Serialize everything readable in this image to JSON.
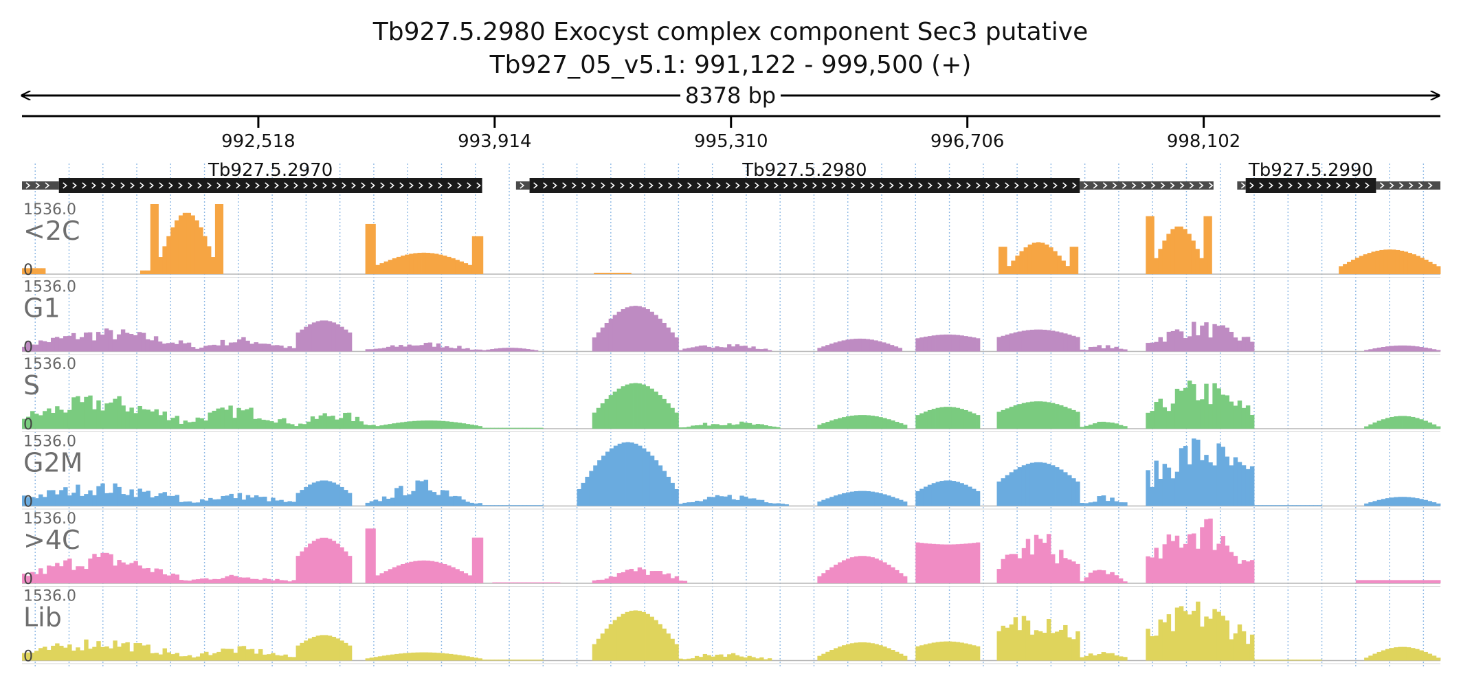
{
  "header": {
    "title": "Tb927.5.2980  Exocyst complex component Sec3  putative",
    "location": "Tb927_05_v5.1: 991,122 - 999,500 (+)",
    "span_label": "8378 bp"
  },
  "chart_data": {
    "type": "area",
    "region": {
      "start": 991122,
      "end": 999500
    },
    "ruler_ticks": [
      {
        "pos": 992518,
        "label": "992,518"
      },
      {
        "pos": 993914,
        "label": "993,914"
      },
      {
        "pos": 995310,
        "label": "995,310"
      },
      {
        "pos": 996706,
        "label": "996,706"
      },
      {
        "pos": 998102,
        "label": "998,102"
      }
    ],
    "genes": [
      {
        "name": "Tb927.5.2970",
        "utr5": [
          991122,
          991340
        ],
        "cds": [
          991340,
          993840
        ]
      },
      {
        "name": "Tb927.5.2980",
        "utr5": [
          994040,
          994120
        ],
        "cds": [
          994120,
          997370
        ],
        "utr3": [
          997370,
          998160
        ]
      },
      {
        "name": "Tb927.5.2990",
        "utr5": [
          998300,
          998350
        ],
        "cds": [
          998350,
          999120
        ],
        "utr3": [
          999120,
          999500
        ]
      }
    ],
    "ylim": [
      0,
      1536
    ],
    "track_max_label": "1536.0",
    "track_min_label": "0",
    "tracks": [
      {
        "name": "<2C",
        "color": "#F6A543",
        "blocks": [
          {
            "from": 991122,
            "to": 991260,
            "base": 130,
            "peak": 130,
            "shape": "flat"
          },
          {
            "from": 991820,
            "to": 991880,
            "base": 80,
            "peak": 80,
            "shape": "flat"
          },
          {
            "from": 991880,
            "to": 992310,
            "base": 1536,
            "peak": 1350,
            "shape": "horns"
          },
          {
            "from": 993150,
            "to": 993210,
            "base": 1100,
            "peak": 1100,
            "shape": "flat"
          },
          {
            "from": 993210,
            "to": 993780,
            "base": 180,
            "peak": 470,
            "shape": "dome"
          },
          {
            "from": 993780,
            "to": 993845,
            "base": 830,
            "peak": 830,
            "shape": "flat"
          },
          {
            "from": 994500,
            "to": 994720,
            "base": 30,
            "peak": 30,
            "shape": "flat"
          },
          {
            "from": 996890,
            "to": 997360,
            "base": 600,
            "peak": 700,
            "shape": "horns"
          },
          {
            "from": 997760,
            "to": 998150,
            "base": 1270,
            "peak": 1050,
            "shape": "horns"
          },
          {
            "from": 998900,
            "to": 999500,
            "base": 150,
            "peak": 540,
            "shape": "dome"
          }
        ]
      },
      {
        "name": "G1",
        "color": "#BE8BC2",
        "blocks": [
          {
            "from": 991122,
            "to": 992120,
            "base": 180,
            "peak": 420,
            "shape": "bumpy"
          },
          {
            "from": 992120,
            "to": 992740,
            "base": 80,
            "peak": 260,
            "shape": "bumpy"
          },
          {
            "from": 992740,
            "to": 993070,
            "base": 380,
            "peak": 680,
            "shape": "dome"
          },
          {
            "from": 993150,
            "to": 993840,
            "base": 40,
            "peak": 170,
            "shape": "bumpy"
          },
          {
            "from": 993840,
            "to": 994170,
            "base": 20,
            "peak": 80,
            "shape": "dome"
          },
          {
            "from": 994490,
            "to": 995000,
            "base": 250,
            "peak": 1000,
            "shape": "dome"
          },
          {
            "from": 995000,
            "to": 995550,
            "base": 40,
            "peak": 160,
            "shape": "bumpy"
          },
          {
            "from": 995820,
            "to": 996320,
            "base": 60,
            "peak": 280,
            "shape": "dome"
          },
          {
            "from": 996400,
            "to": 996780,
            "base": 280,
            "peak": 370,
            "shape": "dome"
          },
          {
            "from": 996880,
            "to": 997370,
            "base": 300,
            "peak": 480,
            "shape": "dome"
          },
          {
            "from": 997370,
            "to": 997650,
            "base": 40,
            "peak": 120,
            "shape": "bumpy"
          },
          {
            "from": 997760,
            "to": 998400,
            "base": 250,
            "peak": 550,
            "shape": "bumpy"
          },
          {
            "from": 999050,
            "to": 999500,
            "base": 20,
            "peak": 130,
            "shape": "dome"
          }
        ]
      },
      {
        "name": "S",
        "color": "#7ACB7F",
        "blocks": [
          {
            "from": 991122,
            "to": 992050,
            "base": 300,
            "peak": 620,
            "shape": "bumpy"
          },
          {
            "from": 992050,
            "to": 992730,
            "base": 150,
            "peak": 420,
            "shape": "bumpy"
          },
          {
            "from": 992730,
            "to": 993210,
            "base": 80,
            "peak": 340,
            "shape": "bumpy"
          },
          {
            "from": 993210,
            "to": 993840,
            "base": 50,
            "peak": 180,
            "shape": "dome"
          },
          {
            "from": 993840,
            "to": 994200,
            "base": 20,
            "peak": 60,
            "shape": "flat"
          },
          {
            "from": 994490,
            "to": 995000,
            "base": 300,
            "peak": 1000,
            "shape": "dome"
          },
          {
            "from": 995000,
            "to": 995600,
            "base": 40,
            "peak": 140,
            "shape": "bumpy"
          },
          {
            "from": 995820,
            "to": 996350,
            "base": 70,
            "peak": 300,
            "shape": "dome"
          },
          {
            "from": 996400,
            "to": 996780,
            "base": 280,
            "peak": 480,
            "shape": "dome"
          },
          {
            "from": 996880,
            "to": 997370,
            "base": 350,
            "peak": 600,
            "shape": "dome"
          },
          {
            "from": 997370,
            "to": 997650,
            "base": 40,
            "peak": 150,
            "shape": "bumpy"
          },
          {
            "from": 997760,
            "to": 998400,
            "base": 400,
            "peak": 900,
            "shape": "bumpy"
          },
          {
            "from": 999050,
            "to": 999500,
            "base": 30,
            "peak": 280,
            "shape": "dome"
          }
        ]
      },
      {
        "name": "G2M",
        "color": "#6AABDF",
        "blocks": [
          {
            "from": 991122,
            "to": 992050,
            "base": 220,
            "peak": 420,
            "shape": "bumpy"
          },
          {
            "from": 992050,
            "to": 992740,
            "base": 80,
            "peak": 240,
            "shape": "bumpy"
          },
          {
            "from": 992740,
            "to": 993070,
            "base": 250,
            "peak": 560,
            "shape": "dome"
          },
          {
            "from": 993150,
            "to": 993840,
            "base": 60,
            "peak": 470,
            "shape": "bumpy"
          },
          {
            "from": 993840,
            "to": 994200,
            "base": 20,
            "peak": 80,
            "shape": "flat"
          },
          {
            "from": 994400,
            "to": 995000,
            "base": 300,
            "peak": 1400,
            "shape": "dome"
          },
          {
            "from": 995000,
            "to": 995650,
            "base": 50,
            "peak": 220,
            "shape": "bumpy"
          },
          {
            "from": 995820,
            "to": 996350,
            "base": 80,
            "peak": 330,
            "shape": "dome"
          },
          {
            "from": 996400,
            "to": 996780,
            "base": 300,
            "peak": 560,
            "shape": "dome"
          },
          {
            "from": 996880,
            "to": 997370,
            "base": 500,
            "peak": 960,
            "shape": "dome"
          },
          {
            "from": 997370,
            "to": 997650,
            "base": 60,
            "peak": 200,
            "shape": "bumpy"
          },
          {
            "from": 997760,
            "to": 998400,
            "base": 700,
            "peak": 1300,
            "shape": "bumpy"
          },
          {
            "from": 998400,
            "to": 998800,
            "base": 20,
            "peak": 90,
            "shape": "flat"
          },
          {
            "from": 999050,
            "to": 999500,
            "base": 40,
            "peak": 200,
            "shape": "dome"
          }
        ]
      },
      {
        "name": ">4C",
        "color": "#F08CC4",
        "blocks": [
          {
            "from": 991122,
            "to": 992050,
            "base": 200,
            "peak": 580,
            "shape": "bumpy"
          },
          {
            "from": 992050,
            "to": 992740,
            "base": 60,
            "peak": 160,
            "shape": "bumpy"
          },
          {
            "from": 992740,
            "to": 993070,
            "base": 550,
            "peak": 1000,
            "shape": "dome"
          },
          {
            "from": 993150,
            "to": 993210,
            "base": 1200,
            "peak": 1200,
            "shape": "flat"
          },
          {
            "from": 993210,
            "to": 993780,
            "base": 150,
            "peak": 500,
            "shape": "dome"
          },
          {
            "from": 993780,
            "to": 993845,
            "base": 1000,
            "peak": 1000,
            "shape": "flat"
          },
          {
            "from": 993900,
            "to": 994300,
            "base": 20,
            "peak": 60,
            "shape": "flat"
          },
          {
            "from": 994490,
            "to": 995050,
            "base": 80,
            "peak": 300,
            "shape": "bumpy"
          },
          {
            "from": 995820,
            "to": 996350,
            "base": 120,
            "peak": 600,
            "shape": "dome"
          },
          {
            "from": 996400,
            "to": 996780,
            "base": 900,
            "peak": 850,
            "shape": "dome"
          },
          {
            "from": 996880,
            "to": 997370,
            "base": 400,
            "peak": 950,
            "shape": "bumpy"
          },
          {
            "from": 997370,
            "to": 997650,
            "base": 60,
            "peak": 300,
            "shape": "bumpy"
          },
          {
            "from": 997760,
            "to": 998400,
            "base": 500,
            "peak": 1300,
            "shape": "bumpy"
          },
          {
            "from": 999000,
            "to": 999500,
            "base": 70,
            "peak": 150,
            "shape": "flat"
          }
        ]
      },
      {
        "name": "Lib",
        "color": "#DFD45C",
        "blocks": [
          {
            "from": 991122,
            "to": 992050,
            "base": 180,
            "peak": 420,
            "shape": "bumpy"
          },
          {
            "from": 992050,
            "to": 992740,
            "base": 80,
            "peak": 260,
            "shape": "bumpy"
          },
          {
            "from": 992740,
            "to": 993070,
            "base": 300,
            "peak": 560,
            "shape": "dome"
          },
          {
            "from": 993150,
            "to": 993840,
            "base": 40,
            "peak": 180,
            "shape": "dome"
          },
          {
            "from": 993840,
            "to": 994200,
            "base": 20,
            "peak": 60,
            "shape": "flat"
          },
          {
            "from": 994490,
            "to": 995000,
            "base": 300,
            "peak": 1100,
            "shape": "dome"
          },
          {
            "from": 995000,
            "to": 995550,
            "base": 40,
            "peak": 150,
            "shape": "bumpy"
          },
          {
            "from": 995820,
            "to": 996350,
            "base": 80,
            "peak": 400,
            "shape": "dome"
          },
          {
            "from": 996400,
            "to": 996780,
            "base": 300,
            "peak": 420,
            "shape": "dome"
          },
          {
            "from": 996880,
            "to": 997370,
            "base": 600,
            "peak": 1050,
            "shape": "bumpy"
          },
          {
            "from": 997370,
            "to": 997650,
            "base": 60,
            "peak": 200,
            "shape": "bumpy"
          },
          {
            "from": 997760,
            "to": 998400,
            "base": 600,
            "peak": 1100,
            "shape": "bumpy"
          },
          {
            "from": 998400,
            "to": 998800,
            "base": 20,
            "peak": 80,
            "shape": "flat"
          },
          {
            "from": 999050,
            "to": 999500,
            "base": 40,
            "peak": 300,
            "shape": "dome"
          }
        ]
      }
    ]
  }
}
